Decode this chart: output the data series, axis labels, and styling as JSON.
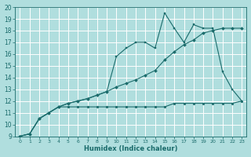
{
  "xlabel": "Humidex (Indice chaleur)",
  "xlim": [
    -0.5,
    23.5
  ],
  "ylim": [
    9,
    20
  ],
  "xticks": [
    0,
    1,
    2,
    3,
    4,
    5,
    6,
    7,
    8,
    9,
    10,
    11,
    12,
    13,
    14,
    15,
    16,
    17,
    18,
    19,
    20,
    21,
    22,
    23
  ],
  "yticks": [
    9,
    10,
    11,
    12,
    13,
    14,
    15,
    16,
    17,
    18,
    19,
    20
  ],
  "bg_color": "#b0dede",
  "grid_color": "#ffffff",
  "line_color": "#1a6b6b",
  "line_diag_x": [
    0,
    1,
    2,
    3,
    4,
    5,
    6,
    7,
    8,
    9,
    10,
    11,
    12,
    13,
    14,
    15,
    16,
    17,
    18,
    19,
    20,
    21,
    22,
    23
  ],
  "line_diag_y": [
    9.0,
    9.2,
    10.5,
    11.0,
    11.5,
    11.8,
    12.0,
    12.2,
    12.5,
    12.8,
    13.2,
    13.5,
    13.8,
    14.2,
    14.6,
    15.5,
    16.2,
    16.8,
    17.2,
    17.8,
    18.0,
    18.2,
    18.2,
    18.2
  ],
  "line_peak_x": [
    0,
    1,
    2,
    3,
    4,
    5,
    6,
    7,
    8,
    9,
    10,
    11,
    12,
    13,
    14,
    15,
    16,
    17,
    18,
    19,
    20,
    21,
    22,
    23
  ],
  "line_peak_y": [
    9.0,
    9.2,
    10.5,
    11.0,
    11.5,
    11.8,
    12.0,
    12.2,
    12.5,
    12.8,
    15.8,
    16.5,
    17.0,
    17.0,
    16.5,
    19.5,
    18.2,
    17.0,
    18.5,
    18.2,
    18.2,
    14.5,
    13.0,
    12.0
  ],
  "line_flat_x": [
    0,
    1,
    2,
    3,
    4,
    5,
    6,
    7,
    8,
    9,
    10,
    11,
    12,
    13,
    14,
    15,
    16,
    17,
    18,
    19,
    20,
    21,
    22,
    23
  ],
  "line_flat_y": [
    9.0,
    9.2,
    10.5,
    11.0,
    11.5,
    11.5,
    11.5,
    11.5,
    11.5,
    11.5,
    11.5,
    11.5,
    11.5,
    11.5,
    11.5,
    11.5,
    11.8,
    11.8,
    11.8,
    11.8,
    11.8,
    11.8,
    11.8,
    12.0
  ]
}
